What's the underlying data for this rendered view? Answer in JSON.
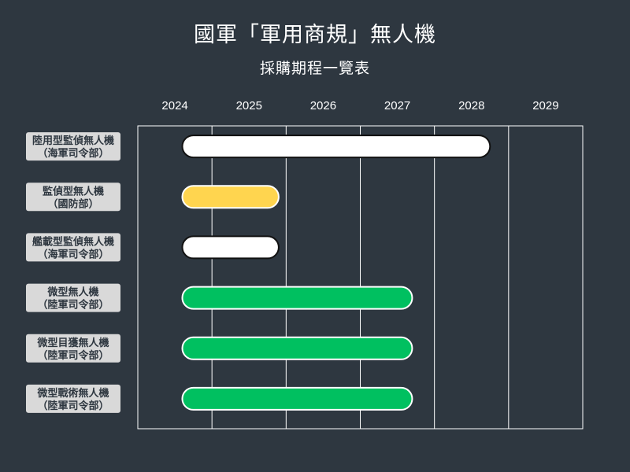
{
  "chart_data": {
    "type": "gantt",
    "title": "國軍「軍用商規」無人機",
    "subtitle": "採購期程一覽表",
    "x_ticks": [
      "2024",
      "2025",
      "2026",
      "2027",
      "2028",
      "2029"
    ],
    "xlim": [
      2023.5,
      2029.5
    ],
    "rows": [
      {
        "label_line1": "陸用型監偵無人機",
        "label_line2": "（海軍司令部）",
        "start": 2024.1,
        "end": 2028.25,
        "color": "#ffffff"
      },
      {
        "label_line1": "監偵型無人機",
        "label_line2": "（國防部）",
        "start": 2024.1,
        "end": 2025.4,
        "color": "#ffd54f"
      },
      {
        "label_line1": "艦載型監偵無人機",
        "label_line2": "（海軍司令部）",
        "start": 2024.1,
        "end": 2025.4,
        "color": "#ffffff"
      },
      {
        "label_line1": "微型無人機",
        "label_line2": "（陸軍司令部）",
        "start": 2024.1,
        "end": 2027.2,
        "color": "#00c060"
      },
      {
        "label_line1": "微型目獲無人機",
        "label_line2": "（陸軍司令部）",
        "start": 2024.1,
        "end": 2027.2,
        "color": "#00c060"
      },
      {
        "label_line1": "微型戰術無人機",
        "label_line2": "（陸軍司令部）",
        "start": 2024.1,
        "end": 2027.2,
        "color": "#00c060"
      }
    ],
    "grid": true
  }
}
